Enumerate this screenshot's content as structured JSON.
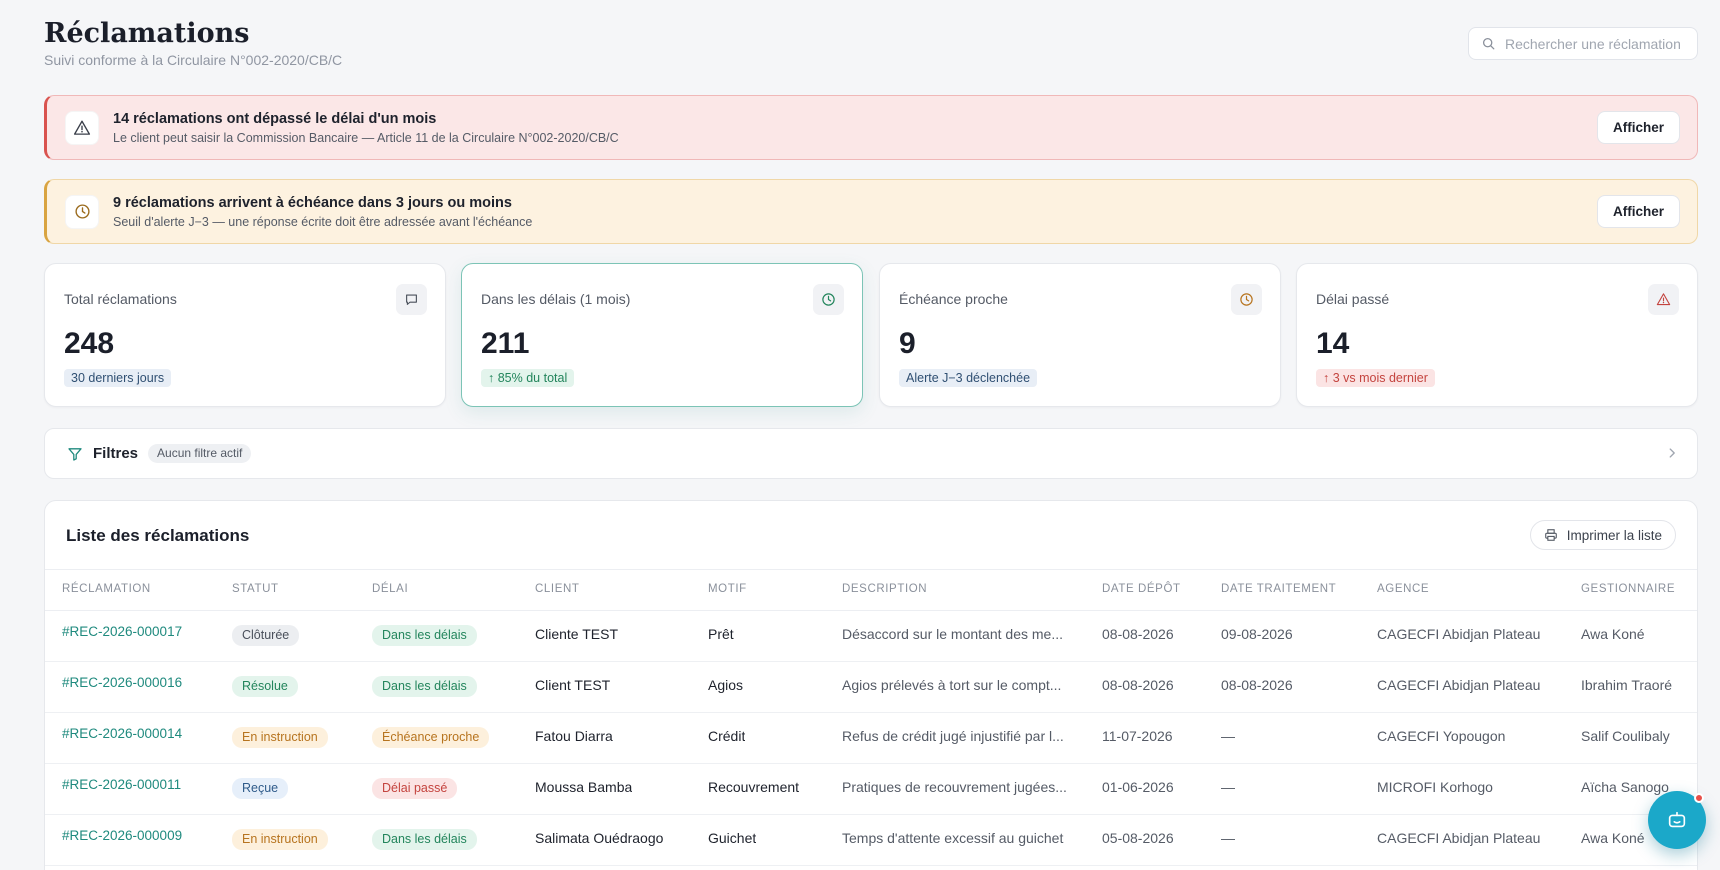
{
  "header": {
    "title": "Réclamations",
    "subtitle": "Suivi conforme à la Circulaire N°002-2020/CB/C",
    "search_placeholder": "Rechercher une réclamation"
  },
  "alerts": [
    {
      "title": "14 réclamations ont dépassé le délai d'un mois",
      "subtitle": "Le client peut saisir la Commission Bancaire — Article 11 de la Circulaire N°002-2020/CB/C",
      "button": "Afficher",
      "icon": "warning-triangle-icon",
      "color": "#d9534f"
    },
    {
      "title": "9 réclamations arrivent à échéance dans 3 jours ou moins",
      "subtitle": "Seuil d'alerte J−3 — une réponse écrite doit être adressée avant l'échéance",
      "button": "Afficher",
      "icon": "clock-icon",
      "color": "#d9a441"
    }
  ],
  "stats": [
    {
      "label": "Total réclamations",
      "value": "248",
      "pill": "30 derniers jours",
      "icon": "message-icon"
    },
    {
      "label": "Dans les délais (1 mois)",
      "value": "211",
      "pill": "↑ 85% du total",
      "icon": "clock-icon"
    },
    {
      "label": "Échéance proche",
      "value": "9",
      "pill": "Alerte J−3 déclenchée",
      "icon": "clock-icon"
    },
    {
      "label": "Délai passé",
      "value": "14",
      "pill": "↑ 3 vs mois dernier",
      "icon": "warning-triangle-icon"
    }
  ],
  "filters": {
    "label": "Filtres",
    "badge": "Aucun filtre actif"
  },
  "table": {
    "title": "Liste des réclamations",
    "print_label": "Imprimer la liste",
    "columns": [
      "Réclamation",
      "Statut",
      "Délai",
      "Client",
      "Motif",
      "Description",
      "Date dépôt",
      "Date traitement",
      "Agence",
      "Gestionnaire"
    ],
    "rows": [
      {
        "id": "#REC-2026-000017",
        "statut": "Clôturée",
        "delai": "Dans les délais",
        "client": "Cliente TEST",
        "motif": "Prêt",
        "description": "Désaccord sur le montant des me...",
        "depot": "08-08-2026",
        "traitement": "09-08-2026",
        "agence": "CAGECFI Abidjan Plateau",
        "gestionnaire": "Awa Koné"
      },
      {
        "id": "#REC-2026-000016",
        "statut": "Résolue",
        "delai": "Dans les délais",
        "client": "Client TEST",
        "motif": "Agios",
        "description": "Agios prélevés à tort sur le compt...",
        "depot": "08-08-2026",
        "traitement": "08-08-2026",
        "agence": "CAGECFI Abidjan Plateau",
        "gestionnaire": "Ibrahim Traoré"
      },
      {
        "id": "#REC-2026-000014",
        "statut": "En instruction",
        "delai": "Échéance proche",
        "client": "Fatou Diarra",
        "motif": "Crédit",
        "description": "Refus de crédit jugé injustifié par l...",
        "depot": "11-07-2026",
        "traitement": "—",
        "agence": "CAGECFI Yopougon",
        "gestionnaire": "Salif Coulibaly"
      },
      {
        "id": "#REC-2026-000011",
        "statut": "Reçue",
        "delai": "Délai passé",
        "client": "Moussa Bamba",
        "motif": "Recouvrement",
        "description": "Pratiques de recouvrement jugées...",
        "depot": "01-06-2026",
        "traitement": "—",
        "agence": "MICROFI Korhogo",
        "gestionnaire": "Aïcha Sanogo"
      },
      {
        "id": "#REC-2026-000009",
        "statut": "En instruction",
        "delai": "Dans les délais",
        "client": "Salimata Ouédraogo",
        "motif": "Guichet",
        "description": "Temps d'attente excessif au guichet",
        "depot": "05-08-2026",
        "traitement": "—",
        "agence": "CAGECFI Abidjan Plateau",
        "gestionnaire": "Awa Koné"
      }
    ]
  },
  "chat_button": {
    "icon": "chat-bot-icon",
    "notification": true
  }
}
